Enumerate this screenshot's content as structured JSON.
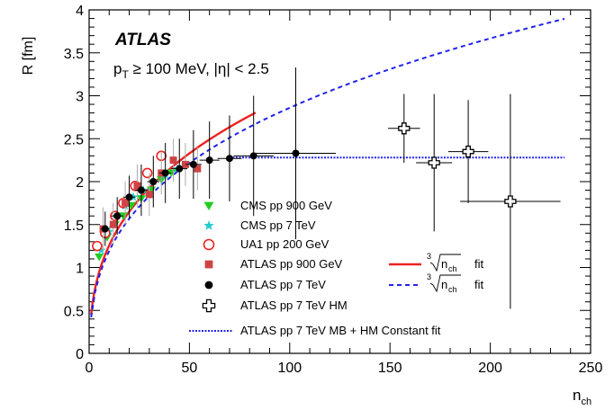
{
  "chart_data": {
    "type": "scatter",
    "experiment_label": "ATLAS",
    "cut_label": "p_T ≥ 100 MeV, |η| < 2.5",
    "cut_label_parts": {
      "p": "p",
      "sub": "T",
      "rest": " ≥ 100 MeV, |η| < 2.5"
    },
    "xlabel": "n",
    "xlabel_sub": "ch",
    "ylabel": "R [fm]",
    "xlim": [
      0,
      250
    ],
    "ylim": [
      0,
      4
    ],
    "x_ticks": [
      "0",
      "50",
      "100",
      "150",
      "200",
      "250"
    ],
    "y_ticks": [
      "0",
      "0.5",
      "1",
      "1.5",
      "2",
      "2.5",
      "3",
      "3.5",
      "4"
    ],
    "series": [
      {
        "name": "CMS pp 900 GeV",
        "marker": "triangle-down",
        "color": "#22cc22",
        "points": [
          [
            5,
            1.12
          ],
          [
            9,
            1.35
          ],
          [
            13,
            1.5
          ],
          [
            17,
            1.6
          ],
          [
            21,
            1.72
          ],
          [
            26,
            1.8
          ],
          [
            31,
            1.9
          ],
          [
            36,
            2.02
          ],
          [
            41,
            2.1
          ]
        ]
      },
      {
        "name": "CMS pp 7 TeV",
        "marker": "star",
        "color": "#22cccc",
        "points": [
          [
            6,
            1.2
          ],
          [
            10,
            1.42
          ],
          [
            14,
            1.6
          ],
          [
            18,
            1.72
          ],
          [
            22,
            1.82
          ],
          [
            27,
            1.9
          ],
          [
            32,
            2.0
          ],
          [
            38,
            2.08
          ],
          [
            44,
            2.15
          ]
        ]
      },
      {
        "name": "UA1 pp 200 GeV",
        "marker": "circle-open",
        "color": "#ee2222",
        "points": [
          [
            4,
            1.25
          ],
          [
            8,
            1.4
          ],
          [
            13,
            1.6
          ],
          [
            17,
            1.75
          ],
          [
            23,
            1.95
          ],
          [
            29,
            2.1
          ],
          [
            36,
            2.3
          ]
        ]
      },
      {
        "name": "ATLAS pp 900 GeV",
        "marker": "square",
        "color": "#cc4444",
        "points": [
          [
            7,
            1.45
          ],
          [
            12,
            1.5
          ],
          [
            18,
            1.75
          ],
          [
            24,
            1.95
          ],
          [
            30,
            1.85
          ],
          [
            36,
            2.1
          ],
          [
            42,
            2.25
          ],
          [
            48,
            2.2
          ],
          [
            54,
            2.15
          ]
        ],
        "yerr": 0.25
      },
      {
        "name": "ATLAS pp 7 TeV",
        "marker": "circle",
        "color": "#000000",
        "points": [
          [
            8,
            1.45
          ],
          [
            14,
            1.6
          ],
          [
            20,
            1.82
          ],
          [
            26,
            1.9
          ],
          [
            32,
            2.0
          ],
          [
            38,
            2.1
          ],
          [
            45,
            2.15
          ],
          [
            52,
            2.2
          ],
          [
            60,
            2.25
          ],
          [
            70,
            2.27
          ],
          [
            82,
            2.3
          ],
          [
            103,
            2.33
          ]
        ],
        "xerr": [
          2,
          3,
          3,
          3,
          3,
          3,
          4,
          4,
          5,
          6,
          10,
          20
        ],
        "yerr": [
          0.2,
          0.22,
          0.25,
          0.3,
          0.3,
          0.35,
          0.35,
          0.4,
          0.45,
          0.5,
          0.7,
          1.0
        ]
      },
      {
        "name": "ATLAS pp 7 TeV HM",
        "marker": "cross-open",
        "color": "#000000",
        "points": [
          [
            157,
            2.62
          ],
          [
            172,
            2.22
          ],
          [
            189,
            2.35
          ],
          [
            210,
            1.77
          ]
        ],
        "xerr": [
          8,
          9,
          10,
          25
        ],
        "yerr": [
          0.4,
          0.8,
          0.6,
          1.25
        ]
      }
    ],
    "fits": [
      {
        "name": "∛n_ch fit",
        "label_root": "3",
        "label_var": "n",
        "label_sub": "ch",
        "label_suffix": "fit",
        "style": "solid",
        "color": "#ee2222",
        "function": "a + b*cbrt(x)",
        "a": -0.25,
        "b": 0.7,
        "x_range": [
          1,
          83
        ]
      },
      {
        "name": "∛n_ch fit",
        "label_root": "3",
        "label_var": "n",
        "label_sub": "ch",
        "label_suffix": "fit",
        "style": "dashed",
        "color": "#2222ee",
        "function": "a + b*cbrt(x)",
        "a": -0.25,
        "b": 0.67,
        "x_range": [
          1,
          237
        ]
      },
      {
        "name": "ATLAS pp 7 TeV MB + HM Constant fit",
        "style": "dotted",
        "color": "#2222ee",
        "function": "constant",
        "value": 2.28,
        "x_range": [
          70,
          237
        ]
      }
    ],
    "legend_placement": "bottom-center"
  }
}
